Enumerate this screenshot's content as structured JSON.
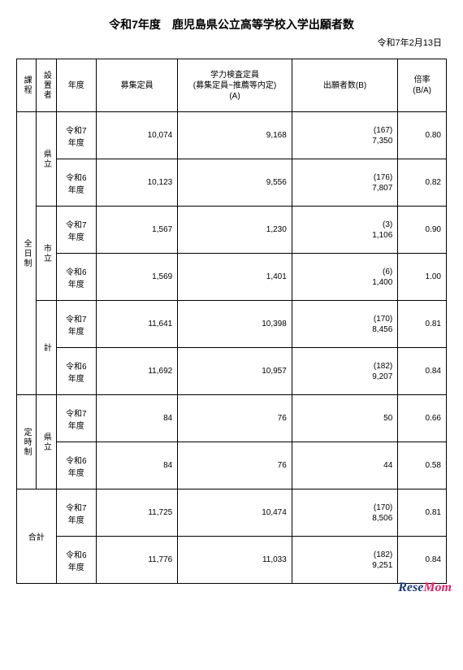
{
  "title": "令和7年度　鹿児島県公立高等学校入学出願者数",
  "date": "令和7年2月13日",
  "headers": {
    "category": "課程",
    "establisher": "設置者",
    "year": "年度",
    "recruit": "募集定員",
    "exam": "学力検査定員\n(募集定員−推薦等内定)\n(A)",
    "applicants": "出願者数(B)",
    "ratio": "倍率\n(B/A)"
  },
  "categories": {
    "zen": "全日制",
    "tei": "定時制",
    "total": "合計"
  },
  "establishers": {
    "ken": "県立",
    "shi": "市立",
    "kei": "計"
  },
  "years": {
    "r7": "令和7\n年度",
    "r6": "令和6\n年度"
  },
  "rows": {
    "zen_ken_r7": {
      "recruit": "10,074",
      "exam": "9,168",
      "appl_paren": "(167)",
      "appl": "7,350",
      "ratio": "0.80"
    },
    "zen_ken_r6": {
      "recruit": "10,123",
      "exam": "9,556",
      "appl_paren": "(176)",
      "appl": "7,807",
      "ratio": "0.82"
    },
    "zen_shi_r7": {
      "recruit": "1,567",
      "exam": "1,230",
      "appl_paren": "(3)",
      "appl": "1,106",
      "ratio": "0.90"
    },
    "zen_shi_r6": {
      "recruit": "1,569",
      "exam": "1,401",
      "appl_paren": "(6)",
      "appl": "1,400",
      "ratio": "1.00"
    },
    "zen_kei_r7": {
      "recruit": "11,641",
      "exam": "10,398",
      "appl_paren": "(170)",
      "appl": "8,456",
      "ratio": "0.81"
    },
    "zen_kei_r6": {
      "recruit": "11,692",
      "exam": "10,957",
      "appl_paren": "(182)",
      "appl": "9,207",
      "ratio": "0.84"
    },
    "tei_ken_r7": {
      "recruit": "84",
      "exam": "76",
      "appl": "50",
      "ratio": "0.66"
    },
    "tei_ken_r6": {
      "recruit": "84",
      "exam": "76",
      "appl": "44",
      "ratio": "0.58"
    },
    "tot_r7": {
      "recruit": "11,725",
      "exam": "10,474",
      "appl_paren": "(170)",
      "appl": "8,506",
      "ratio": "0.81"
    },
    "tot_r6": {
      "recruit": "11,776",
      "exam": "11,033",
      "appl_paren": "(182)",
      "appl": "9,251",
      "ratio": "0.84"
    }
  },
  "watermark": {
    "rese": "Rese",
    "mom": "Mom"
  }
}
